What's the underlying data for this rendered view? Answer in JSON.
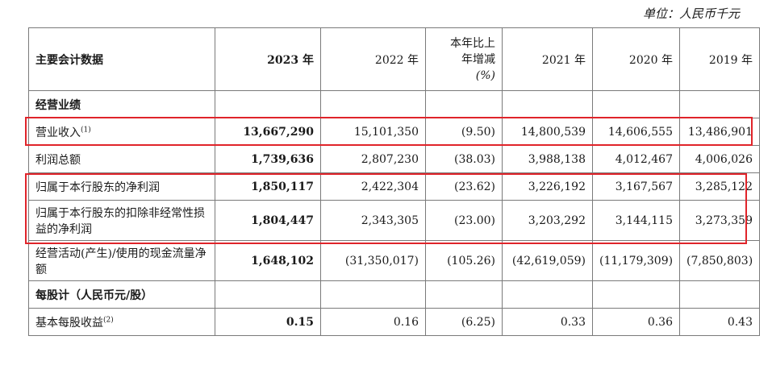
{
  "unit_note": "单位：人民币千元",
  "header": {
    "label": "主要会计数据",
    "cols": [
      "2023 年",
      "2022 年",
      "本年比上年增减(%)",
      "2021 年",
      "2020 年",
      "2019 年"
    ],
    "yoy_lines": [
      "本年比上",
      "年增减",
      "(%)"
    ]
  },
  "sections": {
    "operating": "经营业绩",
    "per_share": "每股计（人民币元/股）"
  },
  "rows": [
    {
      "label": "营业收入",
      "note": "(1)",
      "values": [
        "13,667,290",
        "15,101,350",
        "(9.50)",
        "14,800,539",
        "14,606,555",
        "13,486,901"
      ]
    },
    {
      "label": "利润总额",
      "note": "",
      "values": [
        "1,739,636",
        "2,807,230",
        "(38.03)",
        "3,988,138",
        "4,012,467",
        "4,006,026"
      ]
    },
    {
      "label": "归属于本行股东的净利润",
      "note": "",
      "values": [
        "1,850,117",
        "2,422,304",
        "(23.62)",
        "3,226,192",
        "3,167,567",
        "3,285,122"
      ]
    },
    {
      "label": "归属于本行股东的扣除非经常性损益的净利润",
      "note": "",
      "values": [
        "1,804,447",
        "2,343,305",
        "(23.00)",
        "3,203,292",
        "3,144,115",
        "3,273,359"
      ]
    },
    {
      "label": "经营活动(产生)/使用的现金流量净额",
      "note": "",
      "values": [
        "1,648,102",
        "(31,350,017)",
        "(105.26)",
        "(42,619,059)",
        "(11,179,309)",
        "(7,850,803)"
      ]
    },
    {
      "label": "基本每股收益",
      "note": "(2)",
      "values": [
        "0.15",
        "0.16",
        "(6.25)",
        "0.33",
        "0.36",
        "0.43"
      ]
    }
  ],
  "highlight_color": "#e0242a"
}
